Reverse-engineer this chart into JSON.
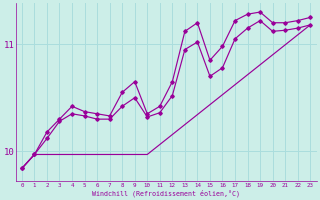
{
  "background_color": "#cceee8",
  "line_color": "#990099",
  "grid_color": "#aadddd",
  "xlabel": "Windchill (Refroidissement éolien,°C)",
  "xlabel_color": "#990099",
  "tick_color": "#990099",
  "xlim": [
    -0.5,
    23.5
  ],
  "ylim": [
    9.72,
    11.38
  ],
  "yticks": [
    10,
    11
  ],
  "xticks": [
    0,
    1,
    2,
    3,
    4,
    5,
    6,
    7,
    8,
    9,
    10,
    11,
    12,
    13,
    14,
    15,
    16,
    17,
    18,
    19,
    20,
    21,
    22,
    23
  ],
  "series1_x": [
    0,
    1,
    2,
    3,
    4,
    5,
    6,
    7,
    8,
    9,
    10,
    11,
    12,
    13,
    14,
    15,
    16,
    17,
    18,
    19,
    20,
    21,
    22,
    23
  ],
  "series1_y": [
    9.84,
    9.97,
    10.12,
    10.28,
    10.35,
    10.33,
    10.3,
    10.3,
    10.42,
    10.5,
    10.32,
    10.36,
    10.52,
    10.95,
    11.02,
    10.7,
    10.78,
    11.05,
    11.15,
    11.22,
    11.12,
    11.13,
    11.15,
    11.18
  ],
  "series2_x": [
    0,
    1,
    2,
    3,
    4,
    5,
    6,
    7,
    8,
    9,
    10,
    11,
    12,
    13,
    14,
    15,
    16,
    17,
    18,
    19,
    20,
    21,
    22,
    23
  ],
  "series2_y": [
    9.84,
    9.97,
    10.18,
    10.3,
    10.42,
    10.37,
    10.35,
    10.33,
    10.55,
    10.65,
    10.35,
    10.42,
    10.65,
    11.12,
    11.2,
    10.85,
    10.98,
    11.22,
    11.28,
    11.3,
    11.2,
    11.2,
    11.22,
    11.25
  ],
  "series3_x": [
    0,
    1,
    10,
    23
  ],
  "series3_y": [
    9.84,
    9.97,
    9.97,
    11.18
  ]
}
